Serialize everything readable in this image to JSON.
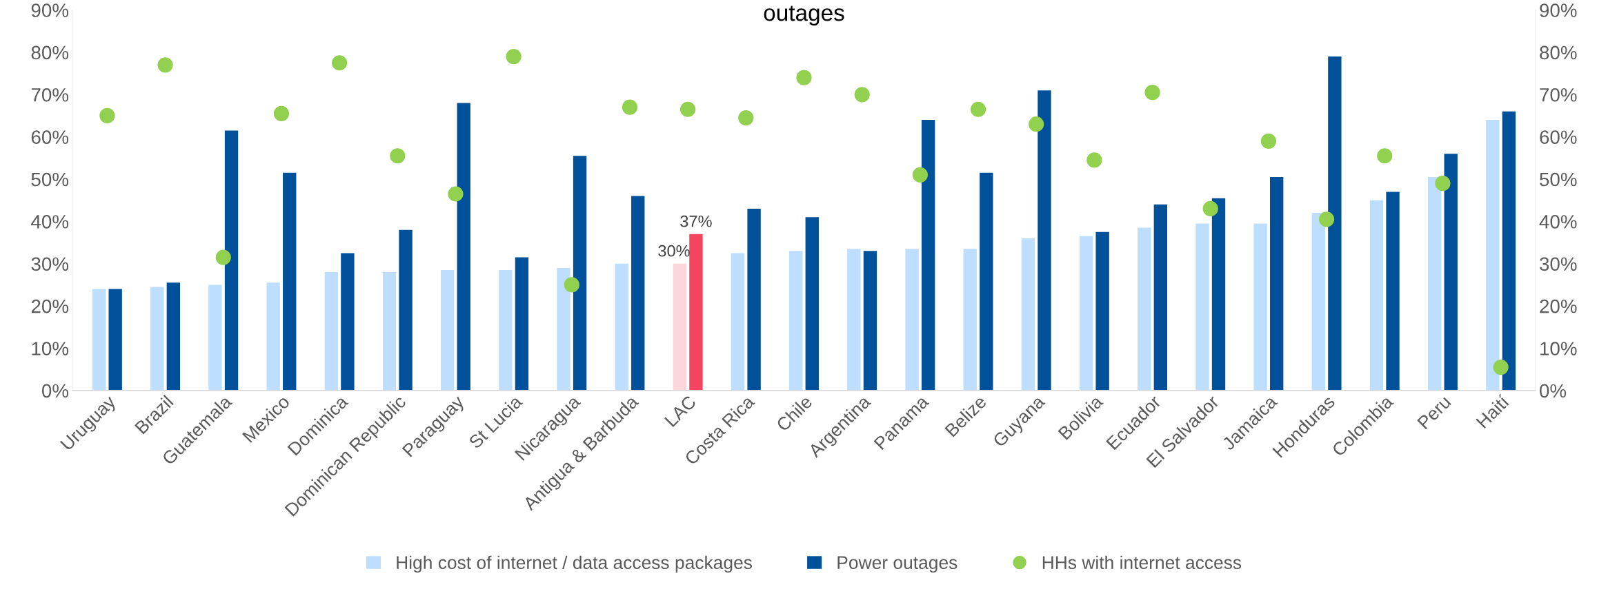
{
  "chart_data": {
    "type": "bar",
    "title": "outages",
    "categories": [
      "Uruguay",
      "Brazil",
      "Guatemala",
      "Mexico",
      "Dominica",
      "Dominican Republic",
      "Paraguay",
      "St Lucia",
      "Nicaragua",
      "Antigua & Barbuda",
      "LAC",
      "Costa Rica",
      "Chile",
      "Argentina",
      "Panama",
      "Belize",
      "Guyana",
      "Bolivia",
      "Ecuador",
      "El Salvador",
      "Jamaica",
      "Honduras",
      "Colombia",
      "Peru",
      "Haití"
    ],
    "series": [
      {
        "name": "High cost of internet / data access packages",
        "color": "#bddefe",
        "colors": [
          "#bddefe",
          "#bddefe",
          "#bddefe",
          "#bddefe",
          "#bddefe",
          "#bddefe",
          "#bddefe",
          "#bddefe",
          "#bddefe",
          "#bddefe",
          "#fcd5dc",
          "#bddefe",
          "#bddefe",
          "#bddefe",
          "#bddefe",
          "#bddefe",
          "#bddefe",
          "#bddefe",
          "#bddefe",
          "#bddefe",
          "#bddefe",
          "#bddefe",
          "#bddefe",
          "#bddefe",
          "#bddefe"
        ],
        "values": [
          24,
          24.5,
          25,
          25.5,
          28,
          28,
          28.5,
          28.5,
          29,
          30,
          30,
          32.5,
          33,
          33.5,
          33.5,
          33.5,
          36,
          36.5,
          38.5,
          39.5,
          39.5,
          42,
          45,
          50.5,
          64
        ],
        "value_labels": [
          null,
          null,
          null,
          null,
          null,
          null,
          null,
          null,
          null,
          null,
          "30%",
          null,
          null,
          null,
          null,
          null,
          null,
          null,
          null,
          null,
          null,
          null,
          null,
          null,
          null
        ]
      },
      {
        "name": "Power outages",
        "color": "#00509a",
        "colors": [
          "#00509a",
          "#00509a",
          "#00509a",
          "#00509a",
          "#00509a",
          "#00509a",
          "#00509a",
          "#00509a",
          "#00509a",
          "#00509a",
          "#f4455e",
          "#00509a",
          "#00509a",
          "#00509a",
          "#00509a",
          "#00509a",
          "#00509a",
          "#00509a",
          "#00509a",
          "#00509a",
          "#00509a",
          "#00509a",
          "#00509a",
          "#00509a",
          "#00509a"
        ],
        "values": [
          24,
          25.5,
          61.5,
          51.5,
          32.5,
          38,
          68,
          31.5,
          55.5,
          46,
          37,
          43,
          41,
          33,
          64,
          51.5,
          71,
          37.5,
          44,
          45.5,
          50.5,
          79,
          47,
          56,
          66
        ],
        "value_labels": [
          null,
          null,
          null,
          null,
          null,
          null,
          null,
          null,
          null,
          null,
          "37%",
          null,
          null,
          null,
          null,
          null,
          null,
          null,
          null,
          null,
          null,
          null,
          null,
          null,
          null
        ]
      },
      {
        "name": "HHs with internet access",
        "type": "scatter",
        "color": "#92d050",
        "marker": "circle",
        "values": [
          65,
          77,
          31.5,
          65.5,
          77.5,
          55.5,
          46.5,
          79,
          25,
          67,
          66.5,
          64.5,
          74,
          70,
          51,
          66.5,
          63,
          54.5,
          70.5,
          43,
          59,
          40.5,
          55.5,
          49,
          5.5
        ]
      }
    ],
    "ylim": [
      0,
      90
    ],
    "yticks": [
      {
        "value": 0,
        "label": "0%"
      },
      {
        "value": 10,
        "label": "10%"
      },
      {
        "value": 20,
        "label": "20%"
      },
      {
        "value": 30,
        "label": "30%"
      },
      {
        "value": 40,
        "label": "40%"
      },
      {
        "value": 50,
        "label": "50%"
      },
      {
        "value": 60,
        "label": "60%"
      },
      {
        "value": 70,
        "label": "70%"
      },
      {
        "value": 80,
        "label": "80%"
      },
      {
        "value": 90,
        "label": "90%"
      }
    ],
    "y2lim": [
      0,
      90
    ],
    "y2ticks": [
      {
        "value": 0,
        "label": "0%"
      },
      {
        "value": 10,
        "label": "10%"
      },
      {
        "value": 20,
        "label": "20%"
      },
      {
        "value": 30,
        "label": "30%"
      },
      {
        "value": 40,
        "label": "40%"
      },
      {
        "value": 50,
        "label": "50%"
      },
      {
        "value": 60,
        "label": "60%"
      },
      {
        "value": 70,
        "label": "70%"
      },
      {
        "value": 80,
        "label": "80%"
      },
      {
        "value": 90,
        "label": "90%"
      }
    ],
    "legend": "bottom",
    "grid": false
  }
}
